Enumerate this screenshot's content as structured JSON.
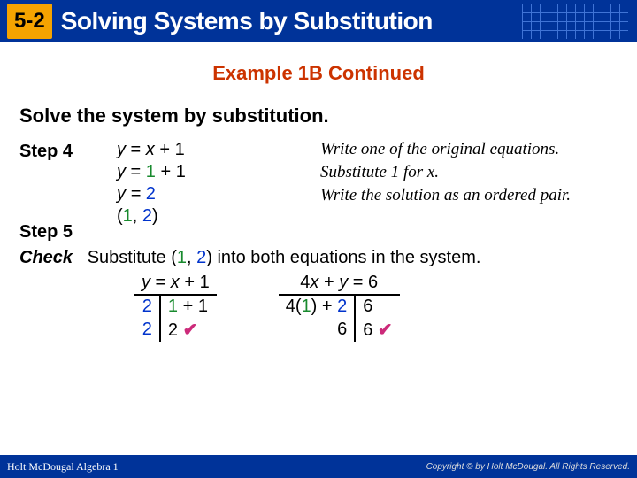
{
  "colors": {
    "brand_blue": "#003399",
    "accent_orange": "#f5a300",
    "red": "#cc3300",
    "green": "#188a2e",
    "blue_text": "#0033cc",
    "tick": "#cc2a7a"
  },
  "header": {
    "section": "5-2",
    "title": "Solving Systems by Substitution"
  },
  "subtitle": "Example 1B Continued",
  "instruction": "Solve the system by substitution.",
  "steps": {
    "s4_label": "Step 4",
    "s5_label": "Step 5",
    "line1_left": "y",
    "line1_mid": " = ",
    "line1_x": "x",
    "line1_right": " + 1",
    "line2": "y = 1 + 1",
    "line3_left": "y = ",
    "line3_val": "2",
    "pair_open": "(",
    "pair_x": "1",
    "pair_sep": ", ",
    "pair_y": "2",
    "pair_close": ")"
  },
  "notes": {
    "n1": "Write one of the original equations.",
    "n2": "Substitute 1 for x.",
    "n3": "Write the solution as an ordered pair."
  },
  "check": {
    "label": "Check",
    "text": "Substitute (1, 2) into both equations in the system.",
    "eq1": {
      "top_l": "y",
      "top_m": " = ",
      "top_x": "x",
      "top_r": " + 1",
      "row1_l": "2",
      "row1_r": "1 + 1",
      "row2_l": "2",
      "row2_r": "2"
    },
    "eq2": {
      "top_4": "4",
      "top_x": "x",
      "top_m": " + ",
      "top_y": "y",
      "top_eq": " = 6",
      "row1_l_a": "4(",
      "row1_l_b": "1",
      "row1_l_c": ") + ",
      "row1_l_d": "2",
      "row1_r": "6",
      "row2_l": "6",
      "row2_r": "6"
    },
    "tick": "✔"
  },
  "footer": {
    "left": "Holt McDougal Algebra 1",
    "right": "Copyright © by Holt McDougal. All Rights Reserved."
  }
}
